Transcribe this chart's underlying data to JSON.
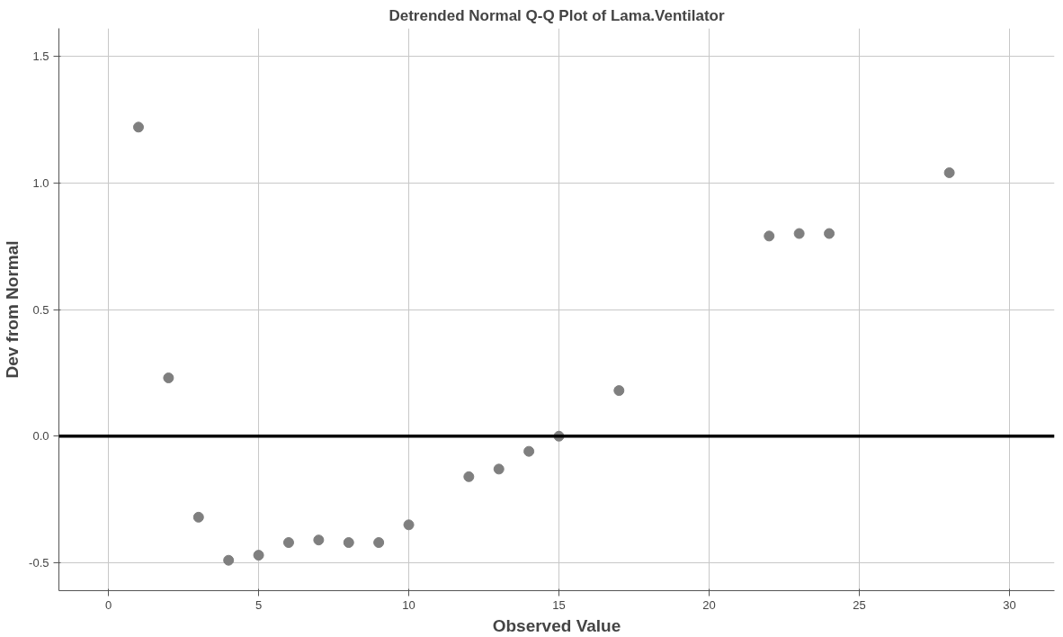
{
  "chart_data": {
    "type": "scatter",
    "title": "Detrended Normal Q-Q Plot of Lama.Ventilator",
    "xlabel": "Observed Value",
    "ylabel": "Dev from Normal",
    "x": [
      1,
      2,
      3,
      4,
      5,
      6,
      7,
      8,
      9,
      10,
      12,
      13,
      14,
      15,
      17,
      22,
      23,
      24,
      28
    ],
    "series": [
      {
        "color": "#7f7f7f",
        "values": [
          1.22,
          0.23,
          -0.32,
          -0.49,
          -0.47,
          -0.42,
          -0.41,
          -0.42,
          -0.42,
          -0.35,
          -0.16,
          -0.13,
          -0.06,
          0.0,
          0.18,
          0.79,
          0.8,
          0.8,
          1.04
        ]
      }
    ],
    "xlim": [
      -1.65,
      31.5
    ],
    "ylim": [
      -0.61,
      1.61
    ],
    "xticks": [
      0,
      5,
      10,
      15,
      20,
      25,
      30
    ],
    "yticks": [
      {
        "value": -0.5,
        "label": "-0.5"
      },
      {
        "value": 0,
        "label": "0.0"
      },
      {
        "value": 0.5,
        "label": "0.5"
      },
      {
        "value": 1,
        "label": "1.0"
      },
      {
        "value": 1.5,
        "label": "1.5"
      }
    ],
    "ref_lines": [
      {
        "axis": "y",
        "value": 0,
        "color": "#000000"
      }
    ],
    "grid": true,
    "marker": "circle"
  }
}
